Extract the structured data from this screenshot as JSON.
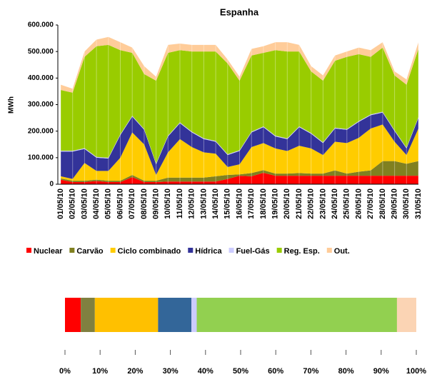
{
  "chart_data": [
    {
      "type": "area",
      "stacked": true,
      "title": "Espanha",
      "y_label": "MWh",
      "grid": "x",
      "legend": "bottom",
      "categories": [
        "01/05/10",
        "02/05/10",
        "03/05/10",
        "04/05/10",
        "05/05/10",
        "06/05/10",
        "07/05/10",
        "08/05/10",
        "09/05/10",
        "10/05/10",
        "11/05/10",
        "12/05/10",
        "13/05/10",
        "14/05/10",
        "15/05/10",
        "16/05/10",
        "17/05/10",
        "18/05/10",
        "19/05/10",
        "20/05/10",
        "21/05/10",
        "22/05/10",
        "23/05/10",
        "24/05/10",
        "25/05/10",
        "26/05/10",
        "27/05/10",
        "28/05/10",
        "29/05/10",
        "30/05/10",
        "31/05/10"
      ],
      "ylim": [
        0,
        600000
      ],
      "yticks": [
        0,
        {
          "value": 100000,
          "label": "100.000"
        },
        {
          "value": 200000,
          "label": "200.000"
        },
        {
          "value": 300000,
          "label": "300.000"
        },
        {
          "value": 400000,
          "label": "400.000"
        },
        {
          "value": 500000,
          "label": "500.000"
        },
        {
          "value": 600000,
          "label": "600.000"
        }
      ],
      "series": [
        {
          "name": "Nuclear",
          "color": "#ff0000",
          "values": [
            17000,
            8000,
            8000,
            12000,
            8000,
            8000,
            27000,
            8000,
            8000,
            10000,
            10000,
            10000,
            10000,
            10000,
            20000,
            32000,
            30000,
            43000,
            32000,
            32000,
            32000,
            32000,
            32000,
            32000,
            32000,
            32000,
            32000,
            32000,
            32000,
            32000,
            32000
          ]
        },
        {
          "name": "Carvão",
          "color": "#808020",
          "values": [
            5000,
            5000,
            5000,
            5000,
            5000,
            5000,
            8000,
            5000,
            5000,
            15000,
            15000,
            15000,
            15000,
            20000,
            15000,
            5000,
            12000,
            10000,
            8000,
            8000,
            10000,
            8000,
            8000,
            20000,
            8000,
            15000,
            20000,
            55000,
            55000,
            45000,
            55000
          ]
        },
        {
          "name": "Ciclo combinado",
          "color": "#ffcc00",
          "values": [
            8000,
            7000,
            67000,
            33000,
            37000,
            87000,
            160000,
            137000,
            22000,
            95000,
            145000,
            115000,
            95000,
            85000,
            30000,
            38000,
            98000,
            102000,
            95000,
            85000,
            103000,
            95000,
            70000,
            108000,
            115000,
            128000,
            158000,
            138000,
            73000,
            33000,
            123000
          ]
        },
        {
          "name": "Hídrica",
          "color": "#333399",
          "values": [
            93000,
            103000,
            53000,
            50000,
            47000,
            85000,
            60000,
            55000,
            40000,
            60000,
            60000,
            55000,
            50000,
            45000,
            45000,
            50000,
            55000,
            60000,
            45000,
            45000,
            70000,
            55000,
            45000,
            50000,
            50000,
            60000,
            50000,
            45000,
            40000,
            25000,
            40000
          ]
        },
        {
          "name": "Fuel-Gás",
          "color": "#ccccff",
          "values": [
            3000,
            3000,
            3000,
            3000,
            3000,
            3000,
            3000,
            3000,
            3000,
            3000,
            3000,
            3000,
            3000,
            3000,
            3000,
            3000,
            3000,
            3000,
            3000,
            3000,
            3000,
            3000,
            3000,
            3000,
            3000,
            3000,
            3000,
            3000,
            3000,
            3000,
            3000
          ]
        },
        {
          "name": "Reg. Esp.",
          "color": "#99cc00",
          "values": [
            229000,
            219000,
            344000,
            417000,
            425000,
            317000,
            237000,
            207000,
            312000,
            312000,
            272000,
            302000,
            327000,
            337000,
            342000,
            262000,
            287000,
            277000,
            322000,
            327000,
            282000,
            232000,
            232000,
            252000,
            272000,
            252000,
            217000,
            242000,
            207000,
            237000,
            257000
          ]
        },
        {
          "name": "Out.",
          "color": "#ffcc99",
          "values": [
            20000,
            15000,
            20000,
            25000,
            30000,
            30000,
            20000,
            30000,
            15000,
            30000,
            25000,
            25000,
            25000,
            25000,
            15000,
            15000,
            25000,
            25000,
            30000,
            35000,
            25000,
            20000,
            20000,
            20000,
            20000,
            25000,
            25000,
            20000,
            15000,
            20000,
            25000
          ]
        }
      ]
    },
    {
      "type": "bar",
      "stacked": true,
      "orientation": "horizontal",
      "categories": [
        null
      ],
      "xlim": [
        0,
        100
      ],
      "xticks": [
        {
          "value": 0,
          "label": "0%"
        },
        {
          "value": 10,
          "label": "10%"
        },
        {
          "value": 20,
          "label": "20%"
        },
        {
          "value": 30,
          "label": "30%"
        },
        {
          "value": 40,
          "label": "40%"
        },
        {
          "value": 50,
          "label": "50%"
        },
        {
          "value": 60,
          "label": "60%"
        },
        {
          "value": 70,
          "label": "70%"
        },
        {
          "value": 80,
          "label": "80%"
        },
        {
          "value": 90,
          "label": "90%"
        },
        {
          "value": 100,
          "label": "100%"
        }
      ],
      "series": [
        {
          "color": "#ff0000",
          "values": [
            4.5
          ]
        },
        {
          "color": "#808040",
          "values": [
            4
          ]
        },
        {
          "color": "#ffc000",
          "values": [
            18
          ]
        },
        {
          "color": "#336699",
          "values": [
            9.5
          ]
        },
        {
          "color": "#ccccff",
          "values": [
            1.5
          ]
        },
        {
          "color": "#92d050",
          "values": [
            57
          ]
        },
        {
          "color": "#fbd4b4",
          "values": [
            5.5
          ]
        }
      ]
    }
  ]
}
